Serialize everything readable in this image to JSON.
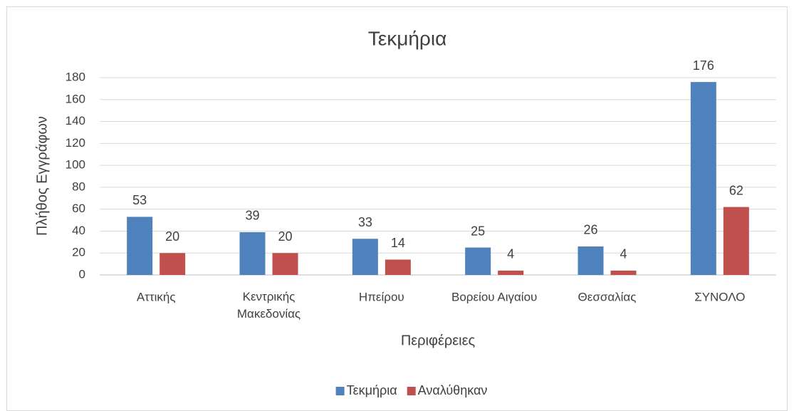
{
  "chart_data": {
    "type": "bar",
    "title": "Τεκμήρια",
    "x_label": "Περιφέρειες",
    "y_label": "Πλήθος Εγγράφων",
    "categories": [
      "Αττικής",
      "Κεντρικής Μακεδονίας",
      "Ηπείρου",
      "Βορείου Αιγαίου",
      "Θεσσαλίας",
      "ΣΥΝΟΛΟ"
    ],
    "series": [
      {
        "name": "Τεκμήρια",
        "color": "#4f81bd",
        "values": [
          53,
          39,
          33,
          25,
          26,
          176
        ]
      },
      {
        "name": "Αναλύθηκαν",
        "color": "#c0504d",
        "values": [
          20,
          20,
          14,
          4,
          4,
          62
        ]
      }
    ],
    "ylim": [
      0,
      180
    ],
    "yticks": [
      0,
      20,
      40,
      60,
      80,
      100,
      120,
      140,
      160,
      180
    ],
    "grid": true,
    "legend": "bottom"
  }
}
